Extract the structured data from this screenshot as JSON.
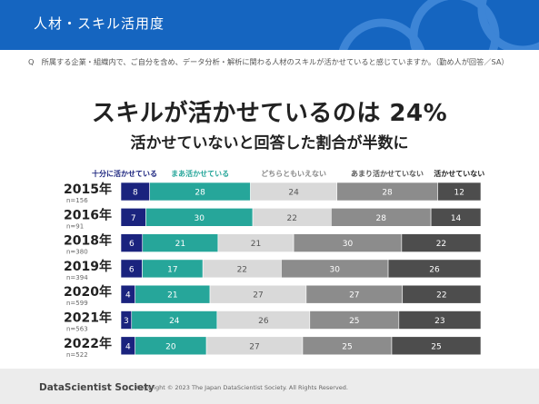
{
  "header": {
    "title": "人材・スキル活用度"
  },
  "question": "Q　所属する企業・組織内で、ご自分を含め、データ分析・解析に関わる人材のスキルが活かせていると感じていますか。（勤め人が回答／SA）",
  "headline": {
    "line1": "スキルが活かせているのは 24%",
    "line2": "活かせていないと回答した割合が半数に"
  },
  "colors": {
    "header_bg": "#1565c0",
    "series": [
      "#1a237e",
      "#26a69a",
      "#d9d9d9",
      "#8c8c8c",
      "#4d4d4d"
    ],
    "label_text": [
      "#ffffff",
      "#ffffff",
      "#555555",
      "#ffffff",
      "#ffffff"
    ],
    "legend_text": [
      "#1a237e",
      "#26a69a",
      "#888888",
      "#555555",
      "#222222"
    ]
  },
  "chart_data": {
    "type": "bar",
    "orientation": "horizontal",
    "stacked": true,
    "categories": [
      "2015年",
      "2016年",
      "2018年",
      "2019年",
      "2020年",
      "2021年",
      "2022年"
    ],
    "sample_sizes": [
      "n=156",
      "n=91",
      "n=380",
      "n=394",
      "n=599",
      "n=563",
      "n=522"
    ],
    "series": [
      {
        "name": "十分に活かせている",
        "values": [
          8,
          7,
          6,
          6,
          4,
          3,
          4
        ]
      },
      {
        "name": "まあ活かせている",
        "values": [
          28,
          30,
          21,
          17,
          21,
          24,
          20
        ]
      },
      {
        "name": "どちらともいえない",
        "values": [
          24,
          22,
          21,
          22,
          27,
          26,
          27
        ]
      },
      {
        "name": "あまり活かせていない",
        "values": [
          28,
          28,
          30,
          30,
          27,
          25,
          25
        ]
      },
      {
        "name": "活かせていない",
        "values": [
          12,
          14,
          22,
          26,
          22,
          23,
          25
        ]
      }
    ],
    "legend_position": "top"
  },
  "footer": {
    "brand": "DataScientist Society",
    "copyright": "Copyright © 2023  The Japan DataScientist Society. All Rights Reserved."
  }
}
